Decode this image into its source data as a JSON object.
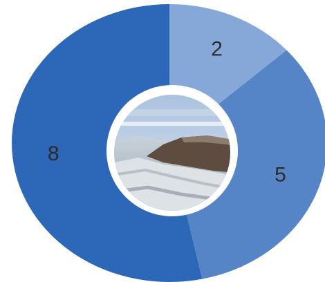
{
  "chart_data": {
    "type": "pie",
    "style": "donut",
    "values": [
      2,
      5,
      8
    ],
    "value_labels": [
      "2",
      "5",
      "8"
    ],
    "colors": [
      "#86a8d8",
      "#5585c6",
      "#2c68b7"
    ],
    "center_image": "coastal-landscape-photo"
  }
}
